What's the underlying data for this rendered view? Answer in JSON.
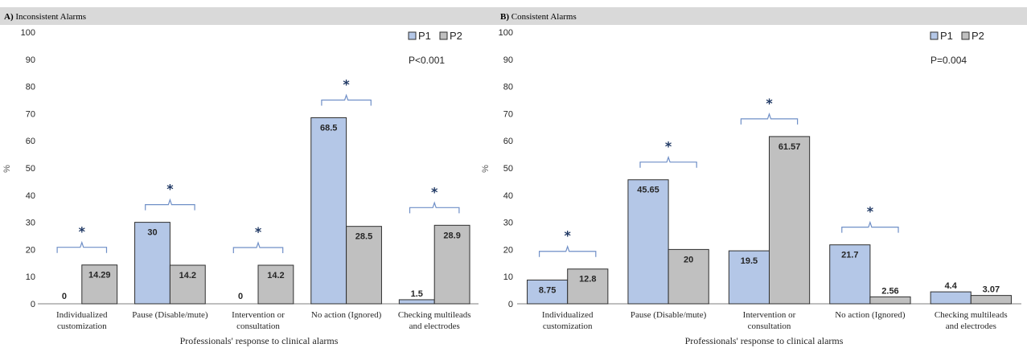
{
  "colors": {
    "p1_fill": "#b4c7e7",
    "p1_stroke": "#2f2f2f",
    "p2_fill": "#c0c0c0",
    "p2_stroke": "#2f2f2f",
    "bracket": "#6f8fc7",
    "star": "#1f3864",
    "header": "#d9d9d9"
  },
  "chart_data": [
    {
      "type": "bar",
      "panel_letter": "A)",
      "title": "Inconsistent Alarms",
      "xlabel": "Professionals' response to  clinical alarms",
      "ylabel": "%",
      "ylim": [
        0,
        100
      ],
      "yticks": [
        0,
        10,
        20,
        30,
        40,
        50,
        60,
        70,
        80,
        90,
        100
      ],
      "categories": [
        [
          "Individualized",
          "customization"
        ],
        [
          "Pause (Disable/mute)"
        ],
        [
          "Intervention or",
          "consultation"
        ],
        [
          "No action (Ignored)"
        ],
        [
          "Checking multileads",
          "and electrodes"
        ]
      ],
      "series": [
        {
          "name": "P1",
          "values": [
            0,
            30,
            0,
            68.5,
            1.5
          ],
          "labels": [
            "0",
            "30",
            "0",
            "68.5",
            "1.5"
          ]
        },
        {
          "name": "P2",
          "values": [
            14.29,
            14.2,
            14.2,
            28.5,
            28.9
          ],
          "labels": [
            "14.29",
            "14.2",
            "14.2",
            "28.5",
            "28.9"
          ]
        }
      ],
      "significance": [
        true,
        true,
        true,
        true,
        true
      ],
      "star_symbol": "*",
      "p_value": "P<0.001",
      "legend_position": "top-right",
      "grid": false
    },
    {
      "type": "bar",
      "panel_letter": "B)",
      "title": "Consistent Alarms",
      "xlabel": "Professionals' response to clinical alarms",
      "ylabel": "%",
      "ylim": [
        0,
        100
      ],
      "yticks": [
        0,
        10,
        20,
        30,
        40,
        50,
        60,
        70,
        80,
        90,
        100
      ],
      "categories": [
        [
          "Individualized",
          "customization"
        ],
        [
          "Pause (Disable/mute)"
        ],
        [
          "Intervention or",
          "consultation"
        ],
        [
          "No action (Ignored)"
        ],
        [
          "Checking multileads",
          "and electrodes"
        ]
      ],
      "series": [
        {
          "name": "P1",
          "values": [
            8.75,
            45.65,
            19.5,
            21.7,
            4.4
          ],
          "labels": [
            "8.75",
            "45.65",
            "19.5",
            "21.7",
            "4.4"
          ]
        },
        {
          "name": "P2",
          "values": [
            12.8,
            20,
            61.57,
            2.56,
            3.07
          ],
          "labels": [
            "12.8",
            "20",
            "61.57",
            "2.56",
            "3.07"
          ]
        }
      ],
      "significance": [
        true,
        true,
        true,
        true,
        false
      ],
      "star_symbol": "*",
      "p_value": "P=0.004",
      "legend_position": "top-right",
      "grid": false
    }
  ]
}
